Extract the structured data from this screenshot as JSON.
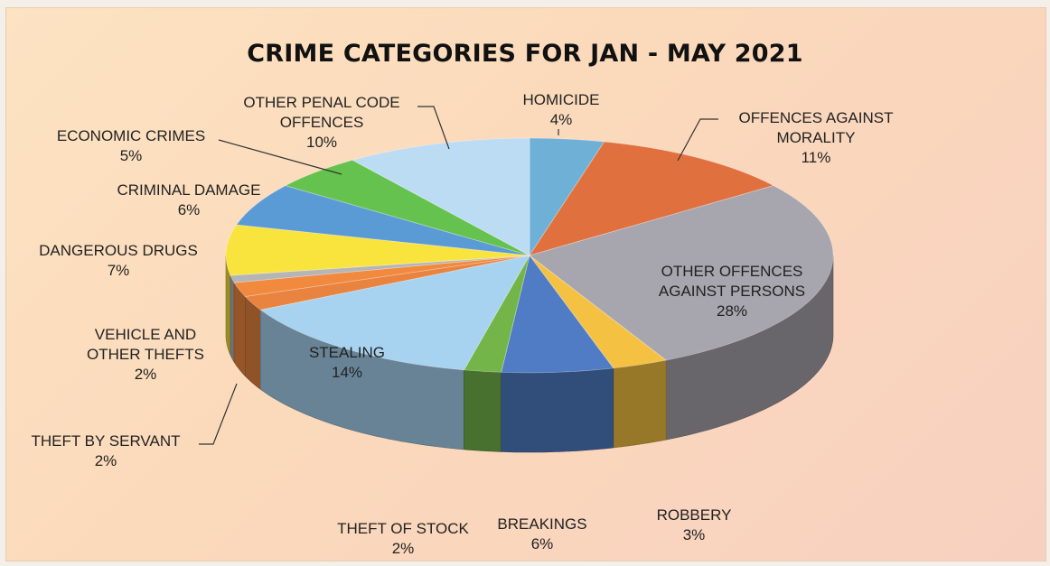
{
  "chart_data": {
    "type": "pie",
    "title": "CRIME CATEGORIES FOR JAN - MAY 2021",
    "slices": [
      {
        "label": "HOMICIDE",
        "value": 4,
        "display": "4%",
        "color": "#6fb1d6"
      },
      {
        "label": "OFFENCES AGAINST MORALITY",
        "value": 11,
        "display": "11%",
        "color": "#e0703e"
      },
      {
        "label": "OTHER OFFENCES AGAINST PERSONS",
        "value": 28,
        "display": "28%",
        "color": "#a7a5ad"
      },
      {
        "label": "ROBBERY",
        "value": 3,
        "display": "3%",
        "color": "#f4c142"
      },
      {
        "label": "BREAKINGS",
        "value": 6,
        "display": "6%",
        "color": "#4f7cc4"
      },
      {
        "label": "THEFT OF STOCK",
        "value": 2,
        "display": "2%",
        "color": "#74b54a"
      },
      {
        "label": "STEALING",
        "value": 14,
        "display": "14%",
        "color": "#a7d3f1"
      },
      {
        "label": "THEFT BY SERVANT",
        "value": 2,
        "display": "2%",
        "color": "#e8843f"
      },
      {
        "label": "VEHICLE AND OTHER THEFTS",
        "value": 2,
        "display": "2%",
        "color": "#f1893f"
      },
      {
        "label": "",
        "value": 1,
        "display": "",
        "color": "#b5b5b5"
      },
      {
        "label": "DANGEROUS DRUGS",
        "value": 7,
        "display": "7%",
        "color": "#f8e43c"
      },
      {
        "label": "CRIMINAL DAMAGE",
        "value": 6,
        "display": "6%",
        "color": "#5b9bd5"
      },
      {
        "label": "ECONOMIC CRIMES",
        "value": 5,
        "display": "5%",
        "color": "#66c24f"
      },
      {
        "label": "OTHER PENAL CODE OFFENCES",
        "value": 10,
        "display": "10%",
        "color": "#bcdcf4"
      }
    ],
    "label_lines": {
      "homicide": [
        "HOMICIDE",
        "4%"
      ],
      "morality": [
        "OFFENCES AGAINST",
        "MORALITY",
        "11%"
      ],
      "persons": [
        "OTHER OFFENCES",
        "AGAINST PERSONS",
        "28%"
      ],
      "robbery": [
        "ROBBERY",
        "3%"
      ],
      "breakings": [
        "BREAKINGS",
        "6%"
      ],
      "stock": [
        "THEFT OF STOCK",
        "2%"
      ],
      "stealing": [
        "STEALING",
        "14%"
      ],
      "servant": [
        "THEFT BY SERVANT",
        "2%"
      ],
      "vehicle": [
        "VEHICLE AND",
        "OTHER THEFTS",
        "2%"
      ],
      "drugs": [
        "DANGEROUS DRUGS",
        "7%"
      ],
      "damage": [
        "CRIMINAL DAMAGE",
        "6%"
      ],
      "economic": [
        "ECONOMIC CRIMES",
        "5%"
      ],
      "penal": [
        "OTHER PENAL CODE",
        "OFFENCES",
        "10%"
      ]
    },
    "legend": "none"
  }
}
